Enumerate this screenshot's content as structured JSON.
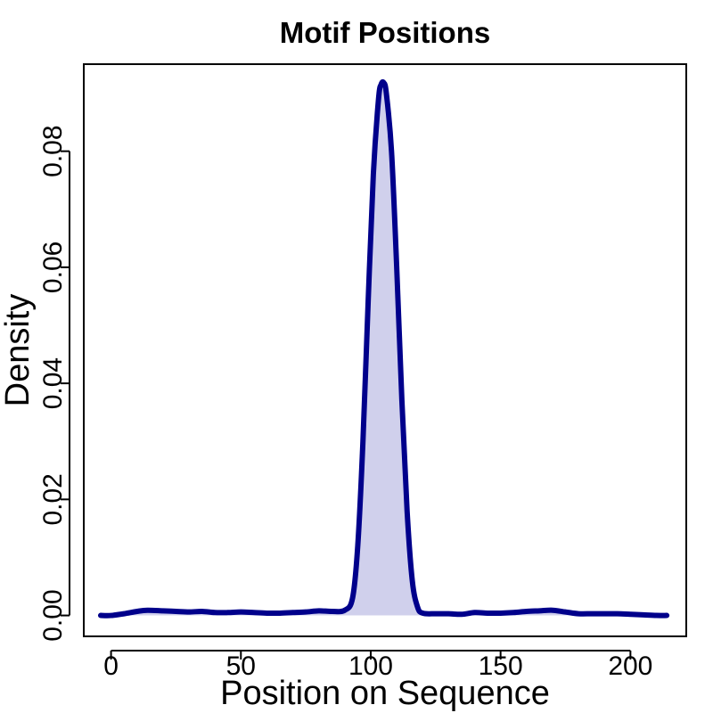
{
  "chart_data": {
    "type": "area",
    "title": "Motif Positions",
    "xlabel": "Position on Sequence",
    "ylabel": "Density",
    "xlim": [
      -10.5,
      221.5
    ],
    "ylim": [
      -0.0036,
      0.095
    ],
    "x_ticks": [
      0,
      50,
      100,
      150,
      200
    ],
    "x_tick_labels": [
      "0",
      "50",
      "100",
      "150",
      "200"
    ],
    "y_ticks": [
      0,
      0.02,
      0.04,
      0.06,
      0.08
    ],
    "y_tick_labels": [
      "0.00",
      "0.02",
      "0.04",
      "0.06",
      "0.08"
    ],
    "grid": false,
    "legend": "none",
    "line_color": "#00008B",
    "fill_color": "#D0D0EC",
    "series": [
      {
        "x": [
          -4,
          0,
          5,
          10,
          14,
          20,
          25,
          30,
          35,
          40,
          45,
          50,
          55,
          60,
          65,
          70,
          75,
          80,
          85,
          90,
          93,
          95,
          97,
          99,
          101,
          103,
          104,
          105,
          106,
          108,
          110,
          112,
          114,
          116,
          118,
          120,
          125,
          130,
          135,
          140,
          145,
          150,
          155,
          160,
          165,
          170,
          175,
          180,
          185,
          190,
          195,
          200,
          205,
          210,
          214
        ],
        "y": [
          0.0,
          0.0,
          0.0003,
          0.0007,
          0.0009,
          0.0008,
          0.0007,
          0.0006,
          0.0007,
          0.0005,
          0.0005,
          0.0006,
          0.0005,
          0.0004,
          0.0004,
          0.0005,
          0.0006,
          0.0008,
          0.0007,
          0.0009,
          0.003,
          0.012,
          0.03,
          0.054,
          0.076,
          0.089,
          0.0915,
          0.0918,
          0.09,
          0.08,
          0.06,
          0.037,
          0.018,
          0.006,
          0.0015,
          0.0004,
          0.0003,
          0.0003,
          0.0002,
          0.0005,
          0.0004,
          0.0004,
          0.0005,
          0.0007,
          0.0008,
          0.0009,
          0.0006,
          0.0003,
          0.0003,
          0.0003,
          0.0003,
          0.0002,
          0.0001,
          0.0,
          0.0
        ]
      }
    ]
  }
}
